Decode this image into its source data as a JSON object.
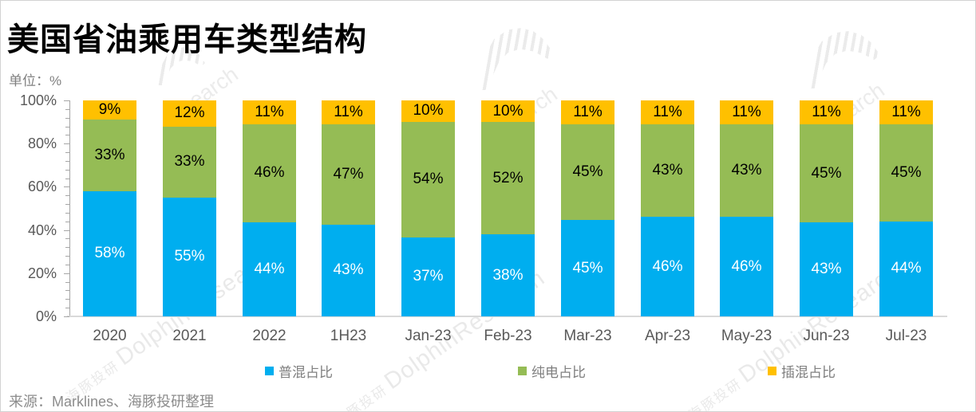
{
  "title": "美国省油乘用车类型结构",
  "unit_label": "单位：%",
  "source": "来源：Marklines、海豚投研整理",
  "watermark": {
    "cn": "海豚投研",
    "en": "DolphinResearch",
    "en_fragment": "earch"
  },
  "colors": {
    "hybrid_blue": "#00AEEF",
    "bev_green": "#95BC55",
    "phev_yellow": "#FFC000",
    "axis_text": "#595959",
    "muted_text": "#808080"
  },
  "chart_data": {
    "type": "bar",
    "stacked": true,
    "percent_stacked": true,
    "title": "美国省油乘用车类型结构",
    "unit": "%",
    "categories": [
      "2020",
      "2021",
      "2022",
      "1H23",
      "Jan-23",
      "Feb-23",
      "Mar-23",
      "Apr-23",
      "May-23",
      "Jun-23",
      "Jul-23"
    ],
    "series": [
      {
        "name": "普混占比",
        "color": "#00AEEF",
        "label_color": "#FFFFFF",
        "values": [
          58,
          55,
          44,
          43,
          37,
          38,
          45,
          46,
          46,
          43,
          44
        ]
      },
      {
        "name": "纯电占比",
        "color": "#95BC55",
        "label_color": "#000000",
        "values": [
          33,
          33,
          46,
          47,
          54,
          52,
          45,
          43,
          43,
          45,
          45
        ]
      },
      {
        "name": "插混占比",
        "color": "#FFC000",
        "label_color": "#000000",
        "values": [
          9,
          12,
          11,
          11,
          10,
          10,
          11,
          11,
          11,
          11,
          11
        ]
      }
    ],
    "ylim": [
      0,
      100
    ],
    "y_ticks": [
      "0%",
      "20%",
      "40%",
      "60%",
      "80%",
      "100%"
    ],
    "y_minor_tick_step": 4,
    "grid": false,
    "legend_position": "bottom",
    "data_label_suffix": "%"
  },
  "legend": {
    "items": [
      {
        "label": "普混占比",
        "color": "#00AEEF"
      },
      {
        "label": "纯电占比",
        "color": "#95BC55"
      },
      {
        "label": "插混占比",
        "color": "#FFC000"
      }
    ]
  }
}
